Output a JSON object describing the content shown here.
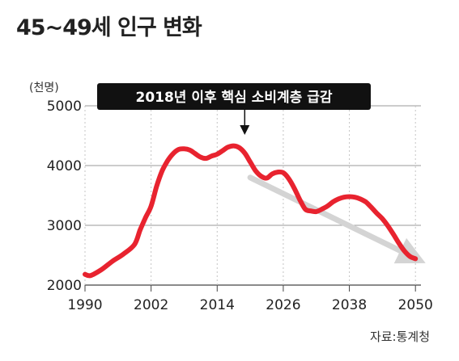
{
  "chart_data": {
    "type": "line",
    "title": "45~49세 인구 변화",
    "unit": "(천명)",
    "source": "자료:통계청",
    "annotation": "2018년 이후 핵심 소비계층 급감",
    "annotation_year": 2019,
    "xlim": [
      1990,
      2051
    ],
    "ylim": [
      2000,
      5000
    ],
    "x_ticks": [
      "1990",
      "2002",
      "2014",
      "2026",
      "2038",
      "2050"
    ],
    "y_ticks": [
      "5000",
      "4000",
      "3000",
      "2000"
    ],
    "grid": true,
    "line_color": "#e8232f",
    "trend_arrow_color": "#d4d4d4",
    "trend_arrow": {
      "from": [
        2020,
        3800
      ],
      "to": [
        2050,
        2450
      ]
    },
    "series": [
      {
        "x": [
          1990,
          1991,
          1993,
          1995,
          1997,
          1999,
          2000,
          2001,
          2002,
          2003,
          2004,
          2005,
          2006,
          2007,
          2008,
          2009,
          2010,
          2011,
          2012,
          2013,
          2014,
          2015,
          2016,
          2017,
          2018,
          2019,
          2020,
          2021,
          2022,
          2023,
          2024,
          2025,
          2026,
          2027,
          2028,
          2029,
          2030,
          2031,
          2032,
          2033,
          2034,
          2035,
          2036,
          2037,
          2038,
          2039,
          2040,
          2041,
          2042,
          2043,
          2044,
          2045,
          2046,
          2047,
          2048,
          2049,
          2050
        ],
        "y": [
          2180,
          2160,
          2260,
          2400,
          2520,
          2680,
          2920,
          3130,
          3320,
          3650,
          3910,
          4080,
          4200,
          4270,
          4280,
          4260,
          4200,
          4140,
          4120,
          4160,
          4190,
          4250,
          4310,
          4330,
          4300,
          4210,
          4060,
          3910,
          3820,
          3790,
          3860,
          3890,
          3880,
          3780,
          3620,
          3430,
          3270,
          3240,
          3230,
          3270,
          3320,
          3390,
          3440,
          3470,
          3480,
          3470,
          3440,
          3390,
          3300,
          3200,
          3110,
          2990,
          2850,
          2700,
          2570,
          2480,
          2440
        ]
      }
    ]
  }
}
